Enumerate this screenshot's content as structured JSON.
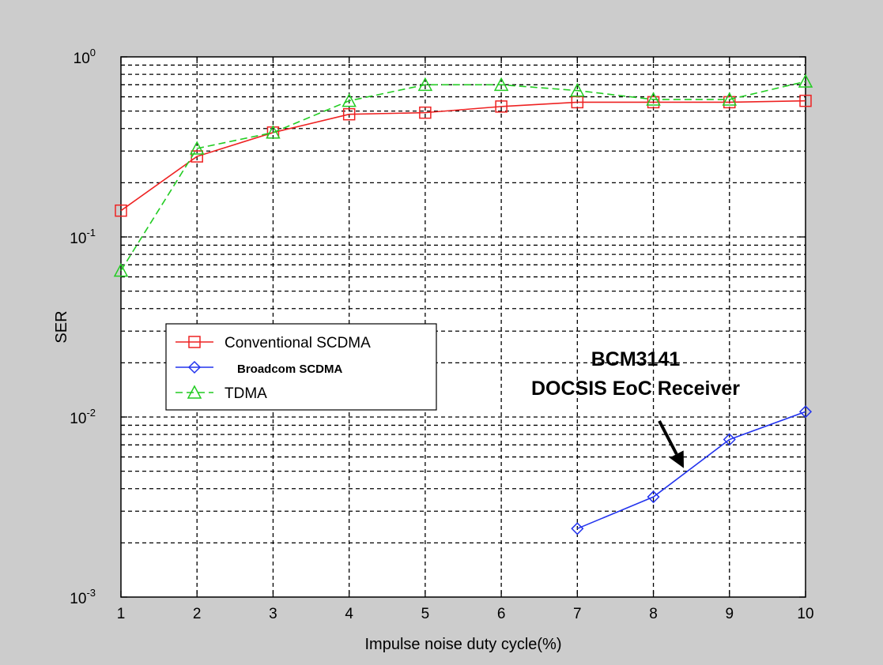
{
  "chart_data": {
    "type": "line",
    "xlabel": "Impulse noise duty cycle(%)",
    "ylabel": "SER",
    "x_ticks": [
      "1",
      "2",
      "3",
      "4",
      "5",
      "6",
      "7",
      "8",
      "9",
      "10"
    ],
    "xlim": [
      1,
      10
    ],
    "ylim": [
      0.001,
      1
    ],
    "y_scale": "log",
    "y_ticks": [
      {
        "value": 1,
        "label": "10^0"
      },
      {
        "value": 0.1,
        "label": "10^-1"
      },
      {
        "value": 0.01,
        "label": "10^-2"
      },
      {
        "value": 0.001,
        "label": "10^-3"
      }
    ],
    "grid": true,
    "legend_position": "left-center",
    "series": [
      {
        "name": "Conventional SCDMA",
        "color": "#ee2222",
        "marker": "square",
        "line_style": "solid",
        "points": [
          [
            1,
            0.14
          ],
          [
            2,
            0.28
          ],
          [
            3,
            0.38
          ],
          [
            4,
            0.48
          ],
          [
            5,
            0.49
          ],
          [
            6,
            0.53
          ],
          [
            7,
            0.56
          ],
          [
            8,
            0.56
          ],
          [
            9,
            0.56
          ],
          [
            10,
            0.57
          ]
        ]
      },
      {
        "name": "Broadcom SCDMA",
        "color": "#2233ee",
        "marker": "diamond",
        "line_style": "solid",
        "points": [
          [
            7,
            0.0024
          ],
          [
            8,
            0.0036
          ],
          [
            9,
            0.0075
          ],
          [
            10,
            0.0107
          ]
        ]
      },
      {
        "name": "TDMA",
        "color": "#22cc22",
        "marker": "triangle",
        "line_style": "dashed",
        "points": [
          [
            1,
            0.065
          ],
          [
            2,
            0.31
          ],
          [
            3,
            0.38
          ],
          [
            4,
            0.57
          ],
          [
            5,
            0.7
          ],
          [
            6,
            0.7
          ],
          [
            7,
            0.65
          ],
          [
            8,
            0.58
          ],
          [
            9,
            0.58
          ],
          [
            10,
            0.73
          ]
        ]
      }
    ],
    "annotation": {
      "lines": [
        "BCM3141",
        "DOCSIS EoC Receiver"
      ],
      "arrow_target": [
        8.4,
        0.0052
      ]
    }
  }
}
